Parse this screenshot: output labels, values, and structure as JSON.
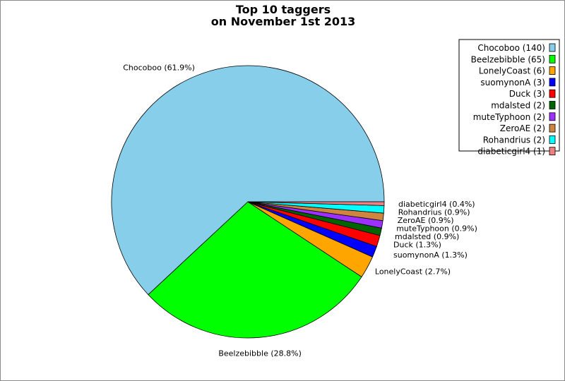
{
  "chart_data": {
    "type": "pie",
    "title": [
      "Top 10 taggers",
      "on November 1st 2013"
    ],
    "start_angle_deg": 0,
    "direction": "counterclockwise",
    "legend_position": "top-right",
    "slices": [
      {
        "name": "Chocoboo",
        "value": 140,
        "label": "Chocoboo (61.9%)",
        "legend": "Chocoboo (140)",
        "color": "#87CEEB"
      },
      {
        "name": "Beelzebibble",
        "value": 65,
        "label": "Beelzebibble (28.8%)",
        "legend": "Beelzebibble (65)",
        "color": "#00FF00"
      },
      {
        "name": "LonelyCoast",
        "value": 6,
        "label": "LonelyCoast (2.7%)",
        "legend": "LonelyCoast (6)",
        "color": "#FFA500"
      },
      {
        "name": "suomynonA",
        "value": 3,
        "label": "suomynonA (1.3%)",
        "legend": "suomynonA (3)",
        "color": "#0000FF"
      },
      {
        "name": "Duck",
        "value": 3,
        "label": "Duck (1.3%)",
        "legend": "Duck (3)",
        "color": "#FF0000"
      },
      {
        "name": "mdalsted",
        "value": 2,
        "label": "mdalsted (0.9%)",
        "legend": "mdalsted (2)",
        "color": "#006400"
      },
      {
        "name": "muteTyphoon",
        "value": 2,
        "label": "muteTyphoon (0.9%)",
        "legend": "muteTyphoon (2)",
        "color": "#9B30FF"
      },
      {
        "name": "ZeroAE",
        "value": 2,
        "label": "ZeroAE (0.9%)",
        "legend": "ZeroAE (2)",
        "color": "#CD853F"
      },
      {
        "name": "Rohandrius",
        "value": 2,
        "label": "Rohandrius (0.9%)",
        "legend": "Rohandrius (2)",
        "color": "#00FFFF"
      },
      {
        "name": "diabeticgirl4",
        "value": 1,
        "label": "diabeticgirl4 (0.4%)",
        "legend": "diabeticgirl4 (1)",
        "color": "#F08080"
      }
    ]
  }
}
